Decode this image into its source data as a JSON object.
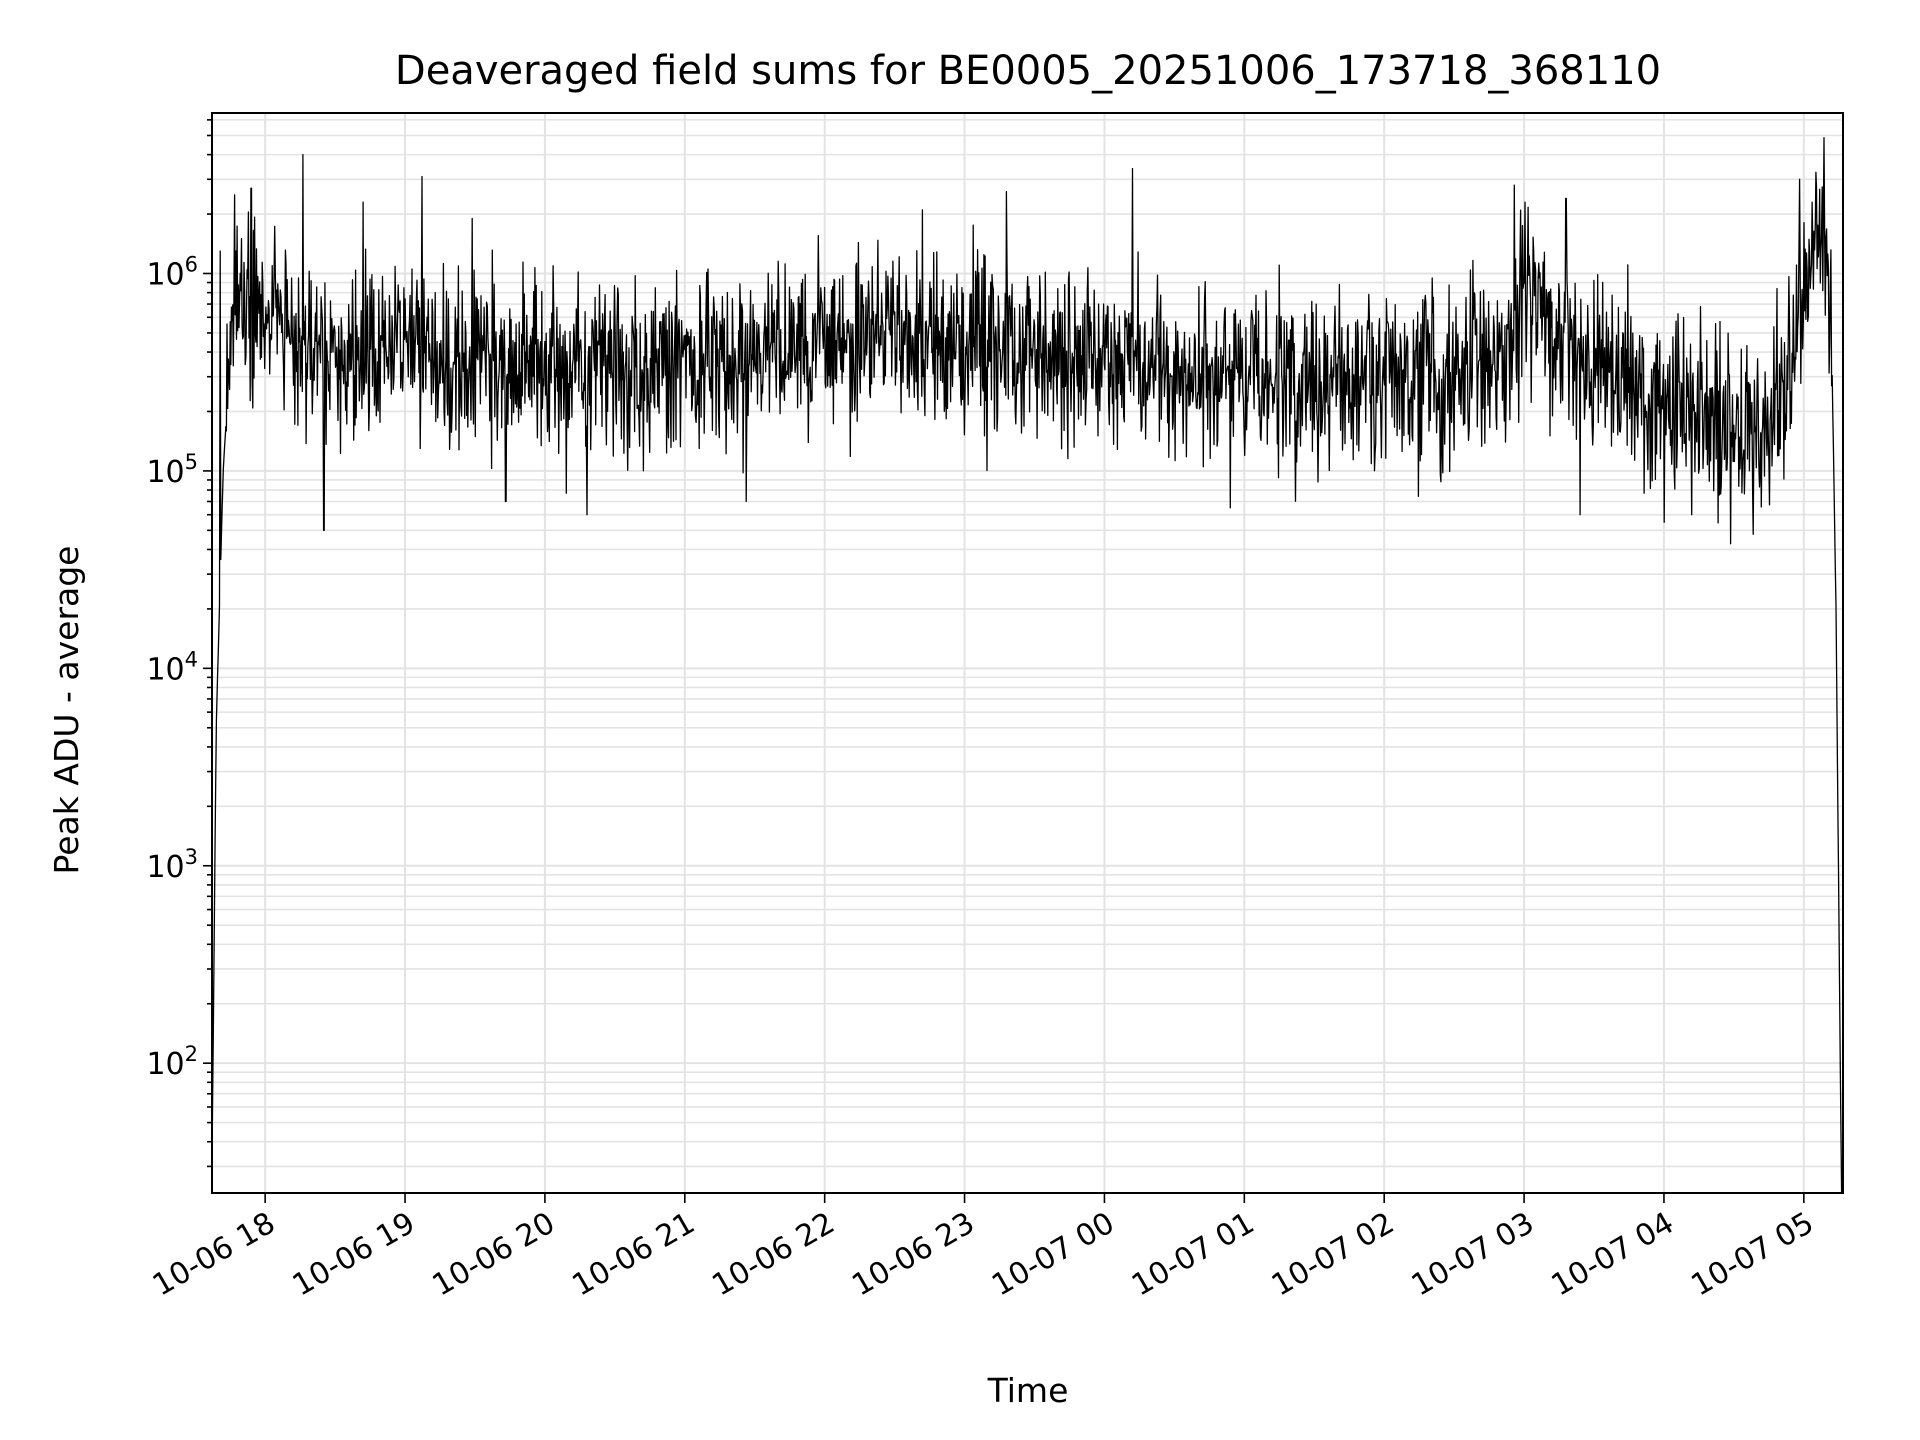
{
  "chart_data": {
    "type": "line",
    "title": "Deaveraged field sums for BE0005_20251006_173718_368110",
    "xlabel": "Time",
    "ylabel": "Peak ADU - average",
    "yscale": "log",
    "ylim": [
      22,
      6500000
    ],
    "xlim_hours_from_1700": [
      0.62,
      12.28
    ],
    "grid": "major+minor",
    "legend": "none",
    "line_color": "#000000",
    "x_ticks": [
      {
        "hour": 1,
        "label": "10-06 18"
      },
      {
        "hour": 2,
        "label": "10-06 19"
      },
      {
        "hour": 3,
        "label": "10-06 20"
      },
      {
        "hour": 4,
        "label": "10-06 21"
      },
      {
        "hour": 5,
        "label": "10-06 22"
      },
      {
        "hour": 6,
        "label": "10-06 23"
      },
      {
        "hour": 7,
        "label": "10-07 00"
      },
      {
        "hour": 8,
        "label": "10-07 01"
      },
      {
        "hour": 9,
        "label": "10-07 02"
      },
      {
        "hour": 10,
        "label": "10-07 03"
      },
      {
        "hour": 11,
        "label": "10-07 04"
      },
      {
        "hour": 12,
        "label": "10-07 05"
      }
    ],
    "y_ticks": [
      {
        "exp": 2,
        "base": "10",
        "sup": "2"
      },
      {
        "exp": 3,
        "base": "10",
        "sup": "3"
      },
      {
        "exp": 4,
        "base": "10",
        "sup": "4"
      },
      {
        "exp": 5,
        "base": "10",
        "sup": "5"
      },
      {
        "exp": 6,
        "base": "10",
        "sup": "6"
      }
    ],
    "series_note": "Noisy per-frame series sampled at ~7 s cadence from 17:37 to 05:15; typical values 1e5–1e6 ADU",
    "envelope": {
      "x": [
        0.62,
        0.65,
        0.7,
        0.75,
        0.82,
        1.0,
        1.5,
        2.0,
        2.5,
        3.0,
        3.5,
        4.0,
        4.5,
        5.0,
        5.5,
        6.0,
        6.5,
        7.0,
        7.5,
        8.0,
        8.5,
        9.0,
        9.3,
        9.6,
        9.9,
        10.0,
        10.2,
        10.5,
        11.0,
        11.3,
        11.6,
        11.75,
        11.9,
        12.0,
        12.07,
        12.15,
        12.2,
        12.23,
        12.27
      ],
      "median": [
        30,
        5000,
        100000,
        400000,
        900000,
        600000,
        380000,
        450000,
        350000,
        320000,
        330000,
        350000,
        400000,
        450000,
        480000,
        450000,
        400000,
        380000,
        300000,
        320000,
        280000,
        270000,
        280000,
        330000,
        380000,
        900000,
        500000,
        330000,
        220000,
        180000,
        150000,
        160000,
        350000,
        700000,
        1500000,
        1800000,
        400000,
        20000,
        20
      ]
    },
    "spikes": [
      {
        "x": 0.68,
        "y": 1300000
      },
      {
        "x": 0.78,
        "y": 2500000
      },
      {
        "x": 0.9,
        "y": 2700000
      },
      {
        "x": 1.27,
        "y": 4000000
      },
      {
        "x": 1.42,
        "y": 50000
      },
      {
        "x": 1.7,
        "y": 2300000
      },
      {
        "x": 2.12,
        "y": 3100000
      },
      {
        "x": 2.48,
        "y": 1900000
      },
      {
        "x": 2.72,
        "y": 70000
      },
      {
        "x": 3.3,
        "y": 60000
      },
      {
        "x": 4.44,
        "y": 70000
      },
      {
        "x": 5.7,
        "y": 2100000
      },
      {
        "x": 6.3,
        "y": 2600000
      },
      {
        "x": 7.2,
        "y": 3400000
      },
      {
        "x": 7.9,
        "y": 65000
      },
      {
        "x": 9.93,
        "y": 2800000
      },
      {
        "x": 10.3,
        "y": 2400000
      },
      {
        "x": 10.4,
        "y": 60000
      },
      {
        "x": 11.0,
        "y": 55000
      },
      {
        "x": 11.2,
        "y": 60000
      },
      {
        "x": 11.97,
        "y": 3000000
      }
    ]
  }
}
